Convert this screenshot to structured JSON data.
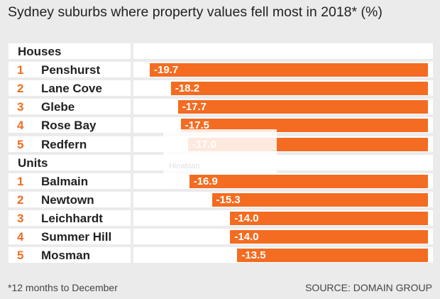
{
  "chart_data": {
    "type": "bar",
    "orientation": "horizontal",
    "title": "Sydney suburbs where property values fell most in 2018* (%)",
    "groups": [
      {
        "name": "Houses",
        "items": [
          {
            "rank": "1",
            "label": "Penshurst",
            "value": -19.7,
            "display": "-19.7"
          },
          {
            "rank": "2",
            "label": "Lane Cove",
            "value": -18.2,
            "display": "-18.2"
          },
          {
            "rank": "3",
            "label": "Glebe",
            "value": -17.7,
            "display": "-17.7"
          },
          {
            "rank": "4",
            "label": "Rose Bay",
            "value": -17.5,
            "display": "-17.5"
          },
          {
            "rank": "5",
            "label": "Redfern",
            "value": -17.0,
            "display": "-17.0"
          }
        ]
      },
      {
        "name": "Units",
        "items": [
          {
            "rank": "1",
            "label": "Balmain",
            "value": -16.9,
            "display": "-16.9"
          },
          {
            "rank": "2",
            "label": "Newtown",
            "value": -15.3,
            "display": "-15.3"
          },
          {
            "rank": "3",
            "label": "Leichhardt",
            "value": -14.0,
            "display": "-14.0"
          },
          {
            "rank": "4",
            "label": "Summer Hill",
            "value": -14.0,
            "display": "-14.0"
          },
          {
            "rank": "5",
            "label": "Mosman",
            "value": -13.5,
            "display": "-13.5"
          }
        ]
      }
    ],
    "footnote": "*12 months to December",
    "source": "SOURCE: DOMAIN GROUP"
  },
  "colors": {
    "accent": "#f36c21",
    "background": "#ebebeb",
    "row": "#ffffff"
  },
  "watermark": {
    "text": "Hinabian"
  }
}
